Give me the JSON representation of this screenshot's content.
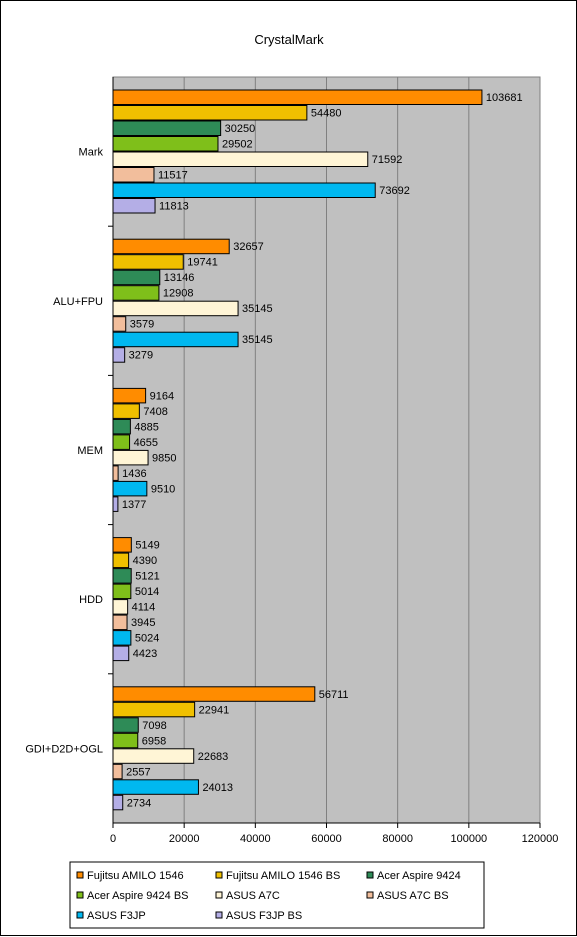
{
  "chart_data": {
    "type": "bar",
    "orientation": "horizontal",
    "title": "CrystalMark",
    "categories": [
      "Mark",
      "ALU+FPU",
      "MEM",
      "HDD",
      "GDI+D2D+OGL"
    ],
    "series": [
      {
        "name": "Fujitsu AMILO 1546",
        "color": "#FF8C00",
        "values": [
          103681,
          32657,
          9164,
          5149,
          56711
        ]
      },
      {
        "name": "Fujitsu AMILO 1546 BS",
        "color": "#F0C000",
        "values": [
          54480,
          19741,
          7408,
          4390,
          22941
        ]
      },
      {
        "name": "Acer Aspire 9424",
        "color": "#2E8B57",
        "values": [
          30250,
          13146,
          4885,
          5121,
          7098
        ]
      },
      {
        "name": "Acer Aspire 9424 BS",
        "color": "#7FBF1A",
        "values": [
          29502,
          12908,
          4655,
          5014,
          6958
        ]
      },
      {
        "name": "ASUS A7C",
        "color": "#FFF5D6",
        "values": [
          71592,
          35145,
          9850,
          4114,
          22683
        ]
      },
      {
        "name": "ASUS A7C BS",
        "color": "#F2BE9C",
        "values": [
          11517,
          3579,
          1436,
          3945,
          2557
        ]
      },
      {
        "name": "ASUS F3JP",
        "color": "#00B8F0",
        "values": [
          73692,
          35145,
          9510,
          5024,
          24013
        ]
      },
      {
        "name": "ASUS F3JP BS",
        "color": "#B4AEE6",
        "values": [
          11813,
          3279,
          1377,
          4423,
          2734
        ]
      }
    ],
    "xlim": [
      0,
      120000
    ],
    "xticks": [
      "0",
      "20000",
      "40000",
      "60000",
      "80000",
      "100000",
      "120000"
    ],
    "xticks_values": [
      0,
      20000,
      40000,
      60000,
      80000,
      100000,
      120000
    ],
    "grid": true,
    "legend_position": "bottom"
  }
}
